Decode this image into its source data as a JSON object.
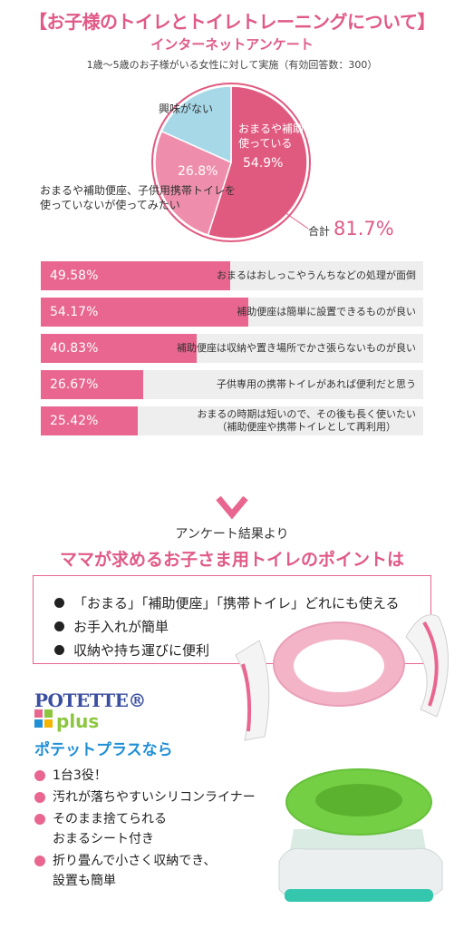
{
  "header": {
    "title": "【お子様のトイレとトイレトレーニングについて】",
    "subtitle": "インターネットアンケート",
    "note": "1歳〜5歳のお子様がいる女性に対して実施（有効回答数：300）"
  },
  "chart_data": [
    {
      "type": "pie",
      "slices": [
        {
          "label": "おまるや補助便座子供用携帯トイレを\n使っている",
          "value": 54.9,
          "pct_text": "54.9%",
          "color": "#e05a80"
        },
        {
          "label": "おまるや補助便座、子供用携帯トイレを\n使っていないが使ってみたい",
          "value": 26.8,
          "pct_text": "26.8%",
          "color": "#ef8eac"
        },
        {
          "label": "興味がない",
          "value": 18.3,
          "pct_text": "",
          "color": "#a7d8e8"
        }
      ],
      "total_label": "合計",
      "total_value": "81.7%"
    },
    {
      "type": "bar",
      "orientation": "horizontal",
      "xlim": [
        0,
        100
      ],
      "bars": [
        {
          "value": 49.58,
          "pct_text": "49.58%",
          "label": "おまるはおしっこやうんちなどの処理が面倒"
        },
        {
          "value": 54.17,
          "pct_text": "54.17%",
          "label": "補助便座は簡単に設置できるものが良い"
        },
        {
          "value": 40.83,
          "pct_text": "40.83%",
          "label": "補助便座は収納や置き場所でかさ張らないものが良い"
        },
        {
          "value": 26.67,
          "pct_text": "26.67%",
          "label": "子供専用の携帯トイレがあれば便利だと思う"
        },
        {
          "value": 25.42,
          "pct_text": "25.42%",
          "label": "おまるの時期は短いので、その後も長く使いたい\n（補助便座や携帯トイレとして再利用）"
        }
      ]
    }
  ],
  "results": {
    "from_label": "アンケート結果より",
    "point_title": "ママが求めるお子さま用トイレのポイントは",
    "points": [
      "「おまる」「補助便座」「携帯トイレ」どれにも使える",
      "お手入れが簡単",
      "収納や持ち運びに便利"
    ]
  },
  "brand": {
    "logo_top": "POTETTE®",
    "logo_bottom": "plus",
    "logo_square_colors": [
      "#e8668f",
      "#8cc63f",
      "#1f8fd6",
      "#f5b400"
    ],
    "tagline": "ポテットプラスなら",
    "features": [
      "1台3役！",
      "汚れが落ちやすいシリコンライナー",
      "そのまま捨てられる\nおまるシート付き",
      "折り畳んで小さく収納でき、\n設置も簡単"
    ]
  },
  "colors": {
    "accent": "#e05a87",
    "bar_fill": "#e8668f",
    "bar_track": "#eeeeee",
    "brand_blue": "#1f8fd6"
  },
  "icons": {
    "arrow": "down-arrow-icon",
    "bullet": "bullet-dot-icon"
  }
}
